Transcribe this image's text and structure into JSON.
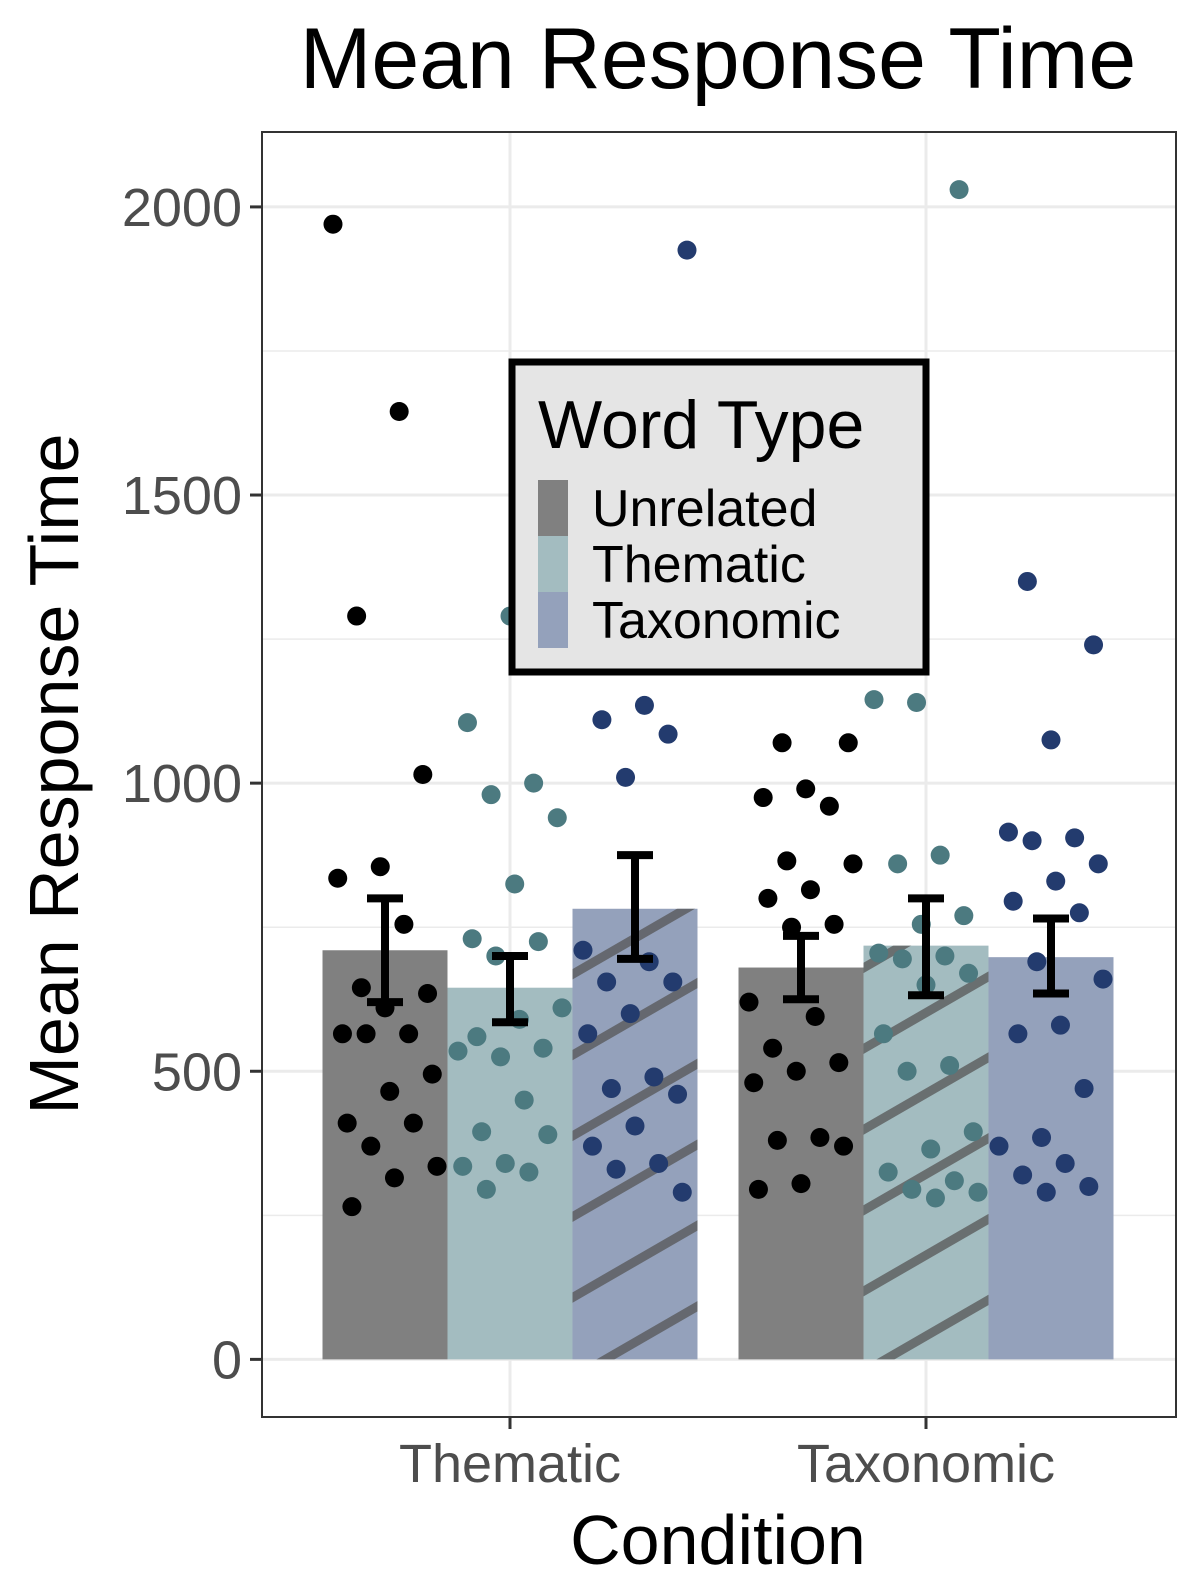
{
  "chart_data": {
    "type": "bar",
    "title": "Mean Response Time",
    "xlabel": "Condition",
    "ylabel": "Mean Response Time",
    "categories": [
      "Thematic",
      "Taxonomic"
    ],
    "ylim": [
      -100,
      2130
    ],
    "yticks": [
      0,
      500,
      1000,
      1500,
      2000
    ],
    "grid": true,
    "legend": {
      "title": "Word Type",
      "placement": "inside-top-center",
      "entries": [
        "Unrelated",
        "Thematic",
        "Taxonomic"
      ]
    },
    "series": [
      {
        "name": "Unrelated",
        "color": "#808080",
        "point_color": "#000000",
        "values": [
          710,
          680
        ],
        "error_low": [
          620,
          625
        ],
        "error_high": [
          800,
          735
        ],
        "points": [
          [
            1970,
            1645,
            1290,
            1015,
            855,
            835,
            755,
            645,
            635,
            610,
            565,
            565,
            565,
            495,
            465,
            410,
            410,
            370,
            335,
            315,
            265
          ],
          [
            1070,
            1070,
            990,
            975,
            960,
            865,
            860,
            815,
            800,
            755,
            750,
            620,
            595,
            540,
            515,
            500,
            480,
            385,
            380,
            370,
            305,
            295
          ]
        ]
      },
      {
        "name": "Thematic",
        "color": "#a3bcc0",
        "point_color": "#4c7a80",
        "values": [
          645,
          718
        ],
        "error_low": [
          585,
          632
        ],
        "error_high": [
          700,
          800
        ],
        "points": [
          [
            1290,
            1105,
            1000,
            980,
            940,
            825,
            730,
            725,
            700,
            610,
            590,
            560,
            540,
            525,
            535,
            450,
            395,
            390,
            340,
            335,
            325,
            295
          ],
          [
            2030,
            1140,
            1145,
            875,
            860,
            770,
            755,
            705,
            700,
            695,
            670,
            650,
            565,
            510,
            500,
            395,
            365,
            325,
            310,
            295,
            290,
            280
          ]
        ]
      },
      {
        "name": "Taxonomic",
        "color": "#94a1bb",
        "point_color": "#233b6e",
        "values": [
          782,
          698
        ],
        "error_low": [
          695,
          635
        ],
        "error_high": [
          875,
          765
        ],
        "points": [
          [
            1925,
            1135,
            1110,
            1085,
            1010,
            710,
            690,
            655,
            655,
            600,
            565,
            490,
            470,
            460,
            405,
            370,
            340,
            330,
            290
          ],
          [
            1350,
            1240,
            1075,
            915,
            905,
            900,
            860,
            830,
            795,
            775,
            690,
            660,
            580,
            565,
            470,
            385,
            370,
            340,
            320,
            300,
            290
          ]
        ]
      }
    ],
    "hatched_bars": [
      [
        2,
        0
      ],
      [
        1,
        1
      ]
    ]
  }
}
